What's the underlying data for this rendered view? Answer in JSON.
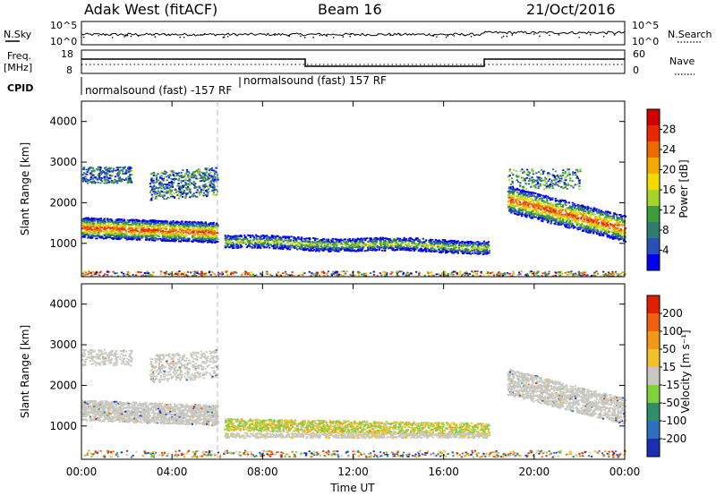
{
  "header": {
    "title": "Adak West (fitACF)",
    "beam": "Beam 16",
    "date": "21/Oct/2016"
  },
  "top_panel": {
    "left_label": "N.Sky",
    "left_ticks": [
      "10^5",
      "10^0"
    ],
    "right_label": "N.Search",
    "right_ticks": [
      "10^5",
      "10^0"
    ]
  },
  "freq_panel": {
    "left_label_1": "Freq.",
    "left_label_2": "[MHz]",
    "left_ticks": [
      "18",
      "8"
    ],
    "right_label": "Nave",
    "right_ticks": [
      "60",
      "0"
    ],
    "cpid_label": "CPID",
    "cpid_1": "normalsound (fast) -157 RF",
    "cpid_2": "normalsound (fast) 157 RF"
  },
  "chart_data": {
    "type": "heatmap",
    "x_ticks": [
      "00:00",
      "04:00",
      "08:00",
      "12:00",
      "16:00",
      "20:00",
      "00:00"
    ],
    "xlabel": "Time UT",
    "ylabel": "Slant Range [km]",
    "y_ticks": [
      "1000",
      "2000",
      "3000",
      "4000"
    ],
    "xlim_hours": [
      0,
      24
    ],
    "ylim_km": [
      180,
      4500
    ],
    "power": {
      "colorbar_label": "Power [dB]",
      "colorbar_ticks": [
        "28",
        "24",
        "20",
        "16",
        "12",
        "8",
        "4"
      ],
      "colors": [
        "#0000ee",
        "#2a4fb8",
        "#2f7d6e",
        "#3a9e3a",
        "#a6d42c",
        "#f0dc00",
        "#f4a800",
        "#f06800",
        "#e82800",
        "#d00000"
      ]
    },
    "velocity": {
      "colorbar_label": "Velocity [m s⁻¹]",
      "colorbar_ticks": [
        "200",
        "100",
        "50",
        "15",
        "-15",
        "-50",
        "-100",
        "-200"
      ],
      "colors": [
        "#1b2fb5",
        "#2e6fc0",
        "#2f8f6a",
        "#7fd23a",
        "#c8c8c0",
        "#f2c02a",
        "#f29818",
        "#f06010",
        "#e02000"
      ]
    }
  }
}
